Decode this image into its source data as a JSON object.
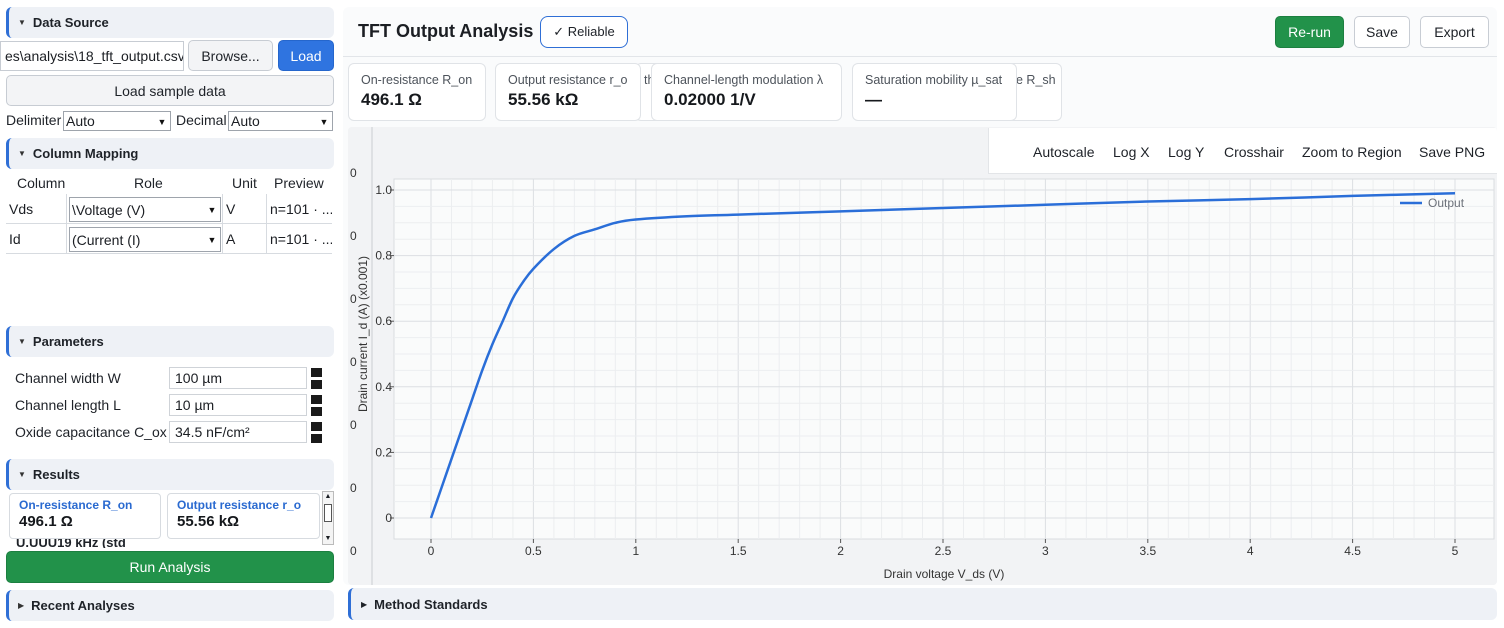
{
  "left": {
    "data_source": {
      "title": "Data Source",
      "file_path": "es\\analysis\\18_tft_output.csv",
      "browse_label": "Browse...",
      "load_label": "Load",
      "sample_label": "Load sample data",
      "delimiter_label": "Delimiter",
      "delimiter_value": "Auto",
      "decimal_label": "Decimal",
      "decimal_value": "Auto"
    },
    "column_mapping": {
      "title": "Column Mapping",
      "headers": [
        "Column",
        "Role",
        "Unit",
        "Preview"
      ],
      "rows": [
        {
          "column": "Vds",
          "role": "\\Voltage (V)",
          "unit": "V",
          "preview": "n=101 · ..."
        },
        {
          "column": "Id",
          "role": "(Current (I)",
          "unit": "A",
          "preview": "n=101 · ..."
        }
      ]
    },
    "parameters": {
      "title": "Parameters",
      "items": [
        {
          "label": "Channel width W",
          "value": "100 µm"
        },
        {
          "label": "Channel length L",
          "value": "10 µm"
        },
        {
          "label": "Oxide capacitance C_ox",
          "value": "34.5 nF/cm²"
        }
      ]
    },
    "results": {
      "title": "Results",
      "cards": [
        {
          "label": "On-resistance R_on",
          "value": "496.1 Ω"
        },
        {
          "label": "Output resistance r_o",
          "value": "55.56 kΩ"
        }
      ],
      "clipped_text": "U.UUU19 kHz (std"
    },
    "run_label": "Run Analysis",
    "recent": {
      "title": "Recent Analyses"
    }
  },
  "header": {
    "title": "TFT Output Analysis",
    "badge": "✓ Reliable",
    "rerun_label": "Re-run",
    "save_label": "Save",
    "export_label": "Export"
  },
  "metrics": [
    {
      "label": "On-resistance R_on",
      "value": "496.1 Ω"
    },
    {
      "label": "Output resistance r_o",
      "value": "55.56 kΩ"
    },
    {
      "label": "Channel-length modulation λ",
      "value": "0.02000 1/V"
    },
    {
      "label": "Saturation mobility µ_sat",
      "value": "—"
    }
  ],
  "metric_fragments": {
    "hidden_a": "th",
    "hidden_b": "e R_sh"
  },
  "toolbar": {
    "items": [
      "Autoscale",
      "Log X",
      "Log Y",
      "Crosshair",
      "Zoom to Region",
      "Save PNG"
    ]
  },
  "method": {
    "title": "Method Standards"
  },
  "chart_data": {
    "type": "line",
    "xlabel": "Drain voltage V_ds (V)",
    "ylabel": "Drain current I_d (A) (x0.001)",
    "xlim": [
      0,
      5
    ],
    "ylim": [
      0,
      1
    ],
    "x_ticks": [
      "0",
      "0.5",
      "1",
      "1.5",
      "2",
      "2.5",
      "3",
      "3.5",
      "4",
      "4.5",
      "5"
    ],
    "y_ticks": [
      "0",
      "0.2",
      "0.4",
      "0.6",
      "0.8",
      "1.0"
    ],
    "grid": true,
    "legend_position": "top-right",
    "series": [
      {
        "name": "Output",
        "color": "#2a6ed8",
        "x": [
          0,
          0.05,
          0.1,
          0.15,
          0.2,
          0.25,
          0.3,
          0.35,
          0.4,
          0.45,
          0.5,
          0.6,
          0.7,
          0.8,
          0.9,
          1.0,
          1.25,
          1.5,
          2.0,
          2.5,
          3.0,
          3.5,
          4.0,
          4.5,
          5.0
        ],
        "y": [
          0,
          0.09,
          0.18,
          0.27,
          0.36,
          0.45,
          0.53,
          0.6,
          0.67,
          0.72,
          0.76,
          0.82,
          0.86,
          0.88,
          0.9,
          0.91,
          0.92,
          0.925,
          0.935,
          0.945,
          0.955,
          0.965,
          0.972,
          0.982,
          0.99
        ]
      }
    ]
  }
}
